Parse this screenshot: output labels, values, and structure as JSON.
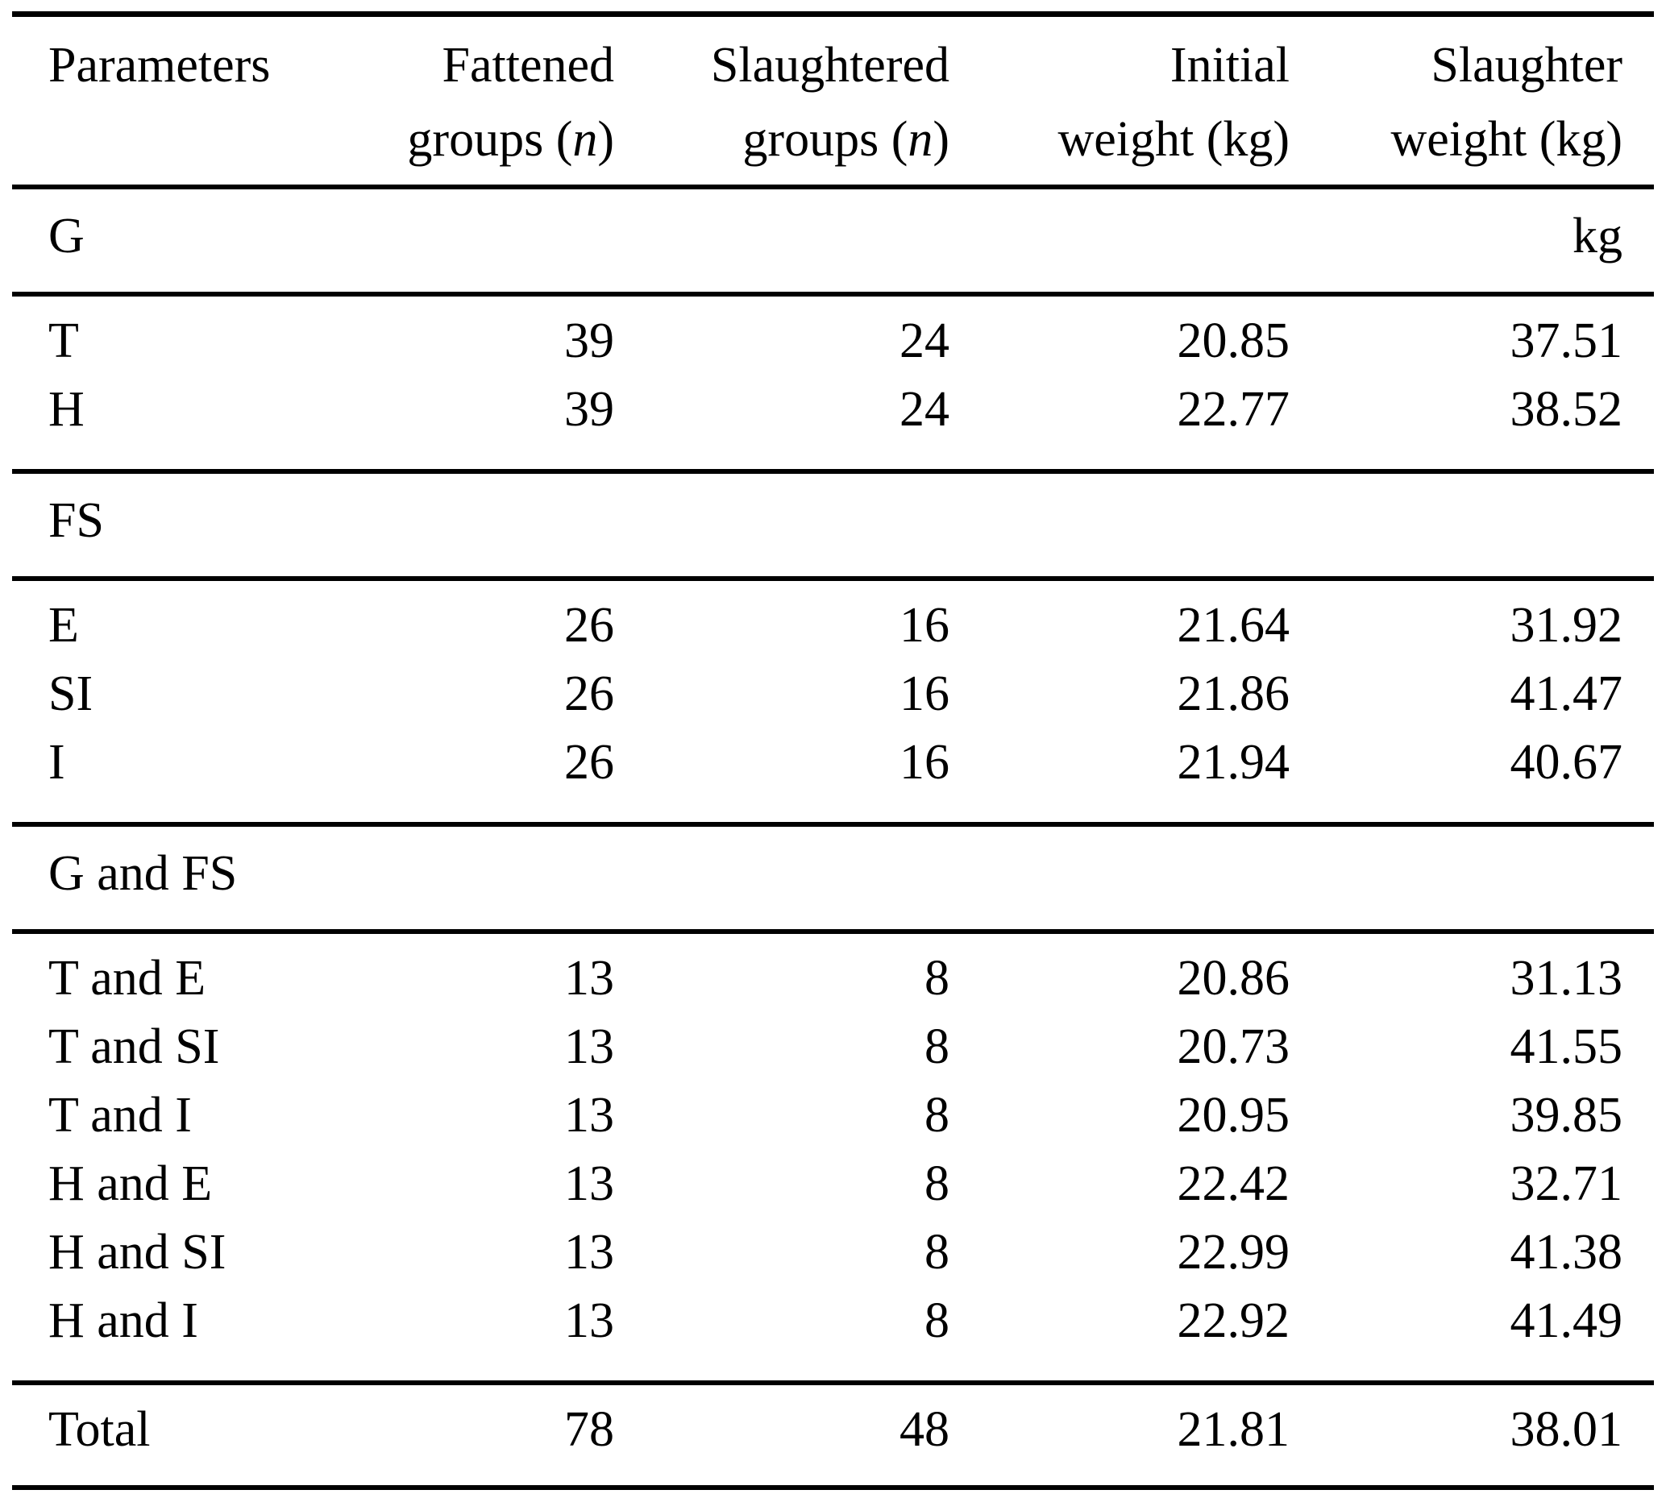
{
  "page": {
    "background": "#ffffff",
    "text_color": "#000000",
    "rule_color": "#000000"
  },
  "table": {
    "header": {
      "col1": "Parameters",
      "col2_line1": "Fattened",
      "col2_line2_pre": "groups (",
      "col2_line2_n": "n",
      "col2_line2_post": ")",
      "col3_line1": "Slaughtered",
      "col3_line2_pre": "groups (",
      "col3_line2_n": "n",
      "col3_line2_post": ")",
      "col4_line1": "Initial",
      "col4_line2": "weight (kg)",
      "col5_line1": "Slaughter",
      "col5_line2": "weight (kg)"
    },
    "section_g": {
      "label": "G",
      "unit": "kg"
    },
    "rows_g": [
      {
        "label": "T",
        "fattened": "39",
        "slaughtered": "24",
        "initial": "20.85",
        "slaughter": "37.51"
      },
      {
        "label": "H",
        "fattened": "39",
        "slaughtered": "24",
        "initial": "22.77",
        "slaughter": "38.52"
      }
    ],
    "section_fs": {
      "label": "FS"
    },
    "rows_fs": [
      {
        "label": "E",
        "fattened": "26",
        "slaughtered": "16",
        "initial": "21.64",
        "slaughter": "31.92"
      },
      {
        "label": "SI",
        "fattened": "26",
        "slaughtered": "16",
        "initial": "21.86",
        "slaughter": "41.47"
      },
      {
        "label": "I",
        "fattened": "26",
        "slaughtered": "16",
        "initial": "21.94",
        "slaughter": "40.67"
      }
    ],
    "section_gfs": {
      "label": "G and FS"
    },
    "rows_gfs": [
      {
        "label": "T and E",
        "fattened": "13",
        "slaughtered": "8",
        "initial": "20.86",
        "slaughter": "31.13"
      },
      {
        "label": "T and SI",
        "fattened": "13",
        "slaughtered": "8",
        "initial": "20.73",
        "slaughter": "41.55"
      },
      {
        "label": "T and I",
        "fattened": "13",
        "slaughtered": "8",
        "initial": "20.95",
        "slaughter": "39.85"
      },
      {
        "label": "H and E",
        "fattened": "13",
        "slaughtered": "8",
        "initial": "22.42",
        "slaughter": "32.71"
      },
      {
        "label": "H and SI",
        "fattened": "13",
        "slaughtered": "8",
        "initial": "22.99",
        "slaughter": "41.38"
      },
      {
        "label": "H and I",
        "fattened": "13",
        "slaughtered": "8",
        "initial": "22.92",
        "slaughter": "41.49"
      }
    ],
    "total": {
      "label": "Total",
      "fattened": "78",
      "slaughtered": "48",
      "initial": "21.81",
      "slaughter": "38.01"
    }
  }
}
